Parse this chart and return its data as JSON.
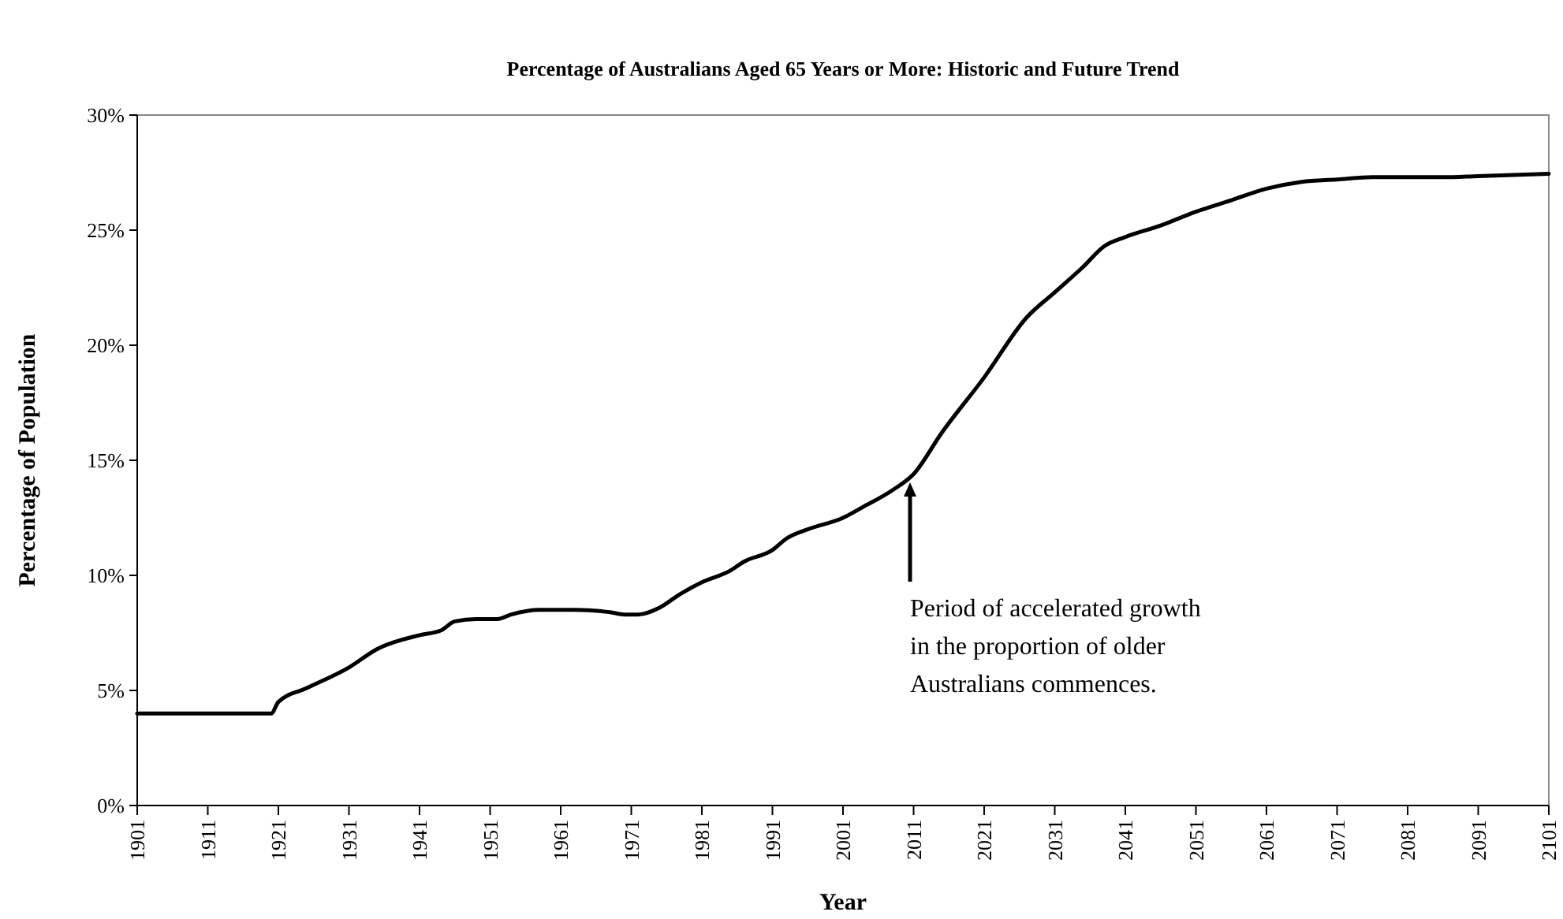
{
  "chart_data": {
    "type": "line",
    "title": "Percentage of Australians Aged 65 Years or More: Historic and Future Trend",
    "xlabel": "Year",
    "ylabel": "Percentage of Population",
    "x": [
      1901,
      1905,
      1910,
      1915,
      1920,
      1921,
      1925,
      1931,
      1935,
      1941,
      1944,
      1946,
      1949,
      1952,
      1954,
      1958,
      1963,
      1968,
      1970,
      1972,
      1975,
      1978,
      1981,
      1985,
      1987,
      1991,
      1993,
      1996,
      2001,
      2004,
      2008,
      2011,
      2015,
      2021,
      2027,
      2031,
      2035,
      2038,
      2041,
      2046,
      2051,
      2056,
      2061,
      2066,
      2071,
      2076,
      2086,
      2091,
      2101
    ],
    "series": [
      {
        "color": "#000000",
        "values": [
          4.0,
          4.0,
          4.0,
          4.0,
          4.0,
          4.5,
          5.1,
          6.0,
          6.8,
          7.4,
          7.6,
          8.0,
          8.1,
          8.1,
          8.3,
          8.5,
          8.5,
          8.4,
          8.3,
          8.3,
          8.6,
          9.2,
          9.7,
          10.2,
          10.6,
          11.1,
          11.6,
          12.0,
          12.5,
          13.0,
          13.7,
          14.4,
          16.2,
          18.6,
          21.2,
          22.3,
          23.4,
          24.3,
          24.7,
          25.2,
          25.8,
          26.3,
          26.8,
          27.1,
          27.2,
          27.3,
          27.3,
          27.35,
          27.45
        ]
      }
    ],
    "xlim": [
      1901,
      2101
    ],
    "xticks": [
      1901,
      1911,
      1921,
      1931,
      1941,
      1951,
      1961,
      1971,
      1981,
      1991,
      2001,
      2011,
      2021,
      2031,
      2041,
      2051,
      2061,
      2071,
      2081,
      2091,
      2101
    ],
    "ylim": [
      0,
      30
    ],
    "yticks": [
      {
        "value": 0,
        "label": "0%"
      },
      {
        "value": 5,
        "label": "5%"
      },
      {
        "value": 10,
        "label": "10%"
      },
      {
        "value": 15,
        "label": "15%"
      },
      {
        "value": 20,
        "label": "20%"
      },
      {
        "value": 25,
        "label": "25%"
      },
      {
        "value": 30,
        "label": "30%"
      }
    ],
    "annotations": [
      "Period of accelerated growth\nin the proportion of older\nAustralians commences."
    ],
    "grid": false,
    "marker": "none",
    "line_style": "solid"
  }
}
